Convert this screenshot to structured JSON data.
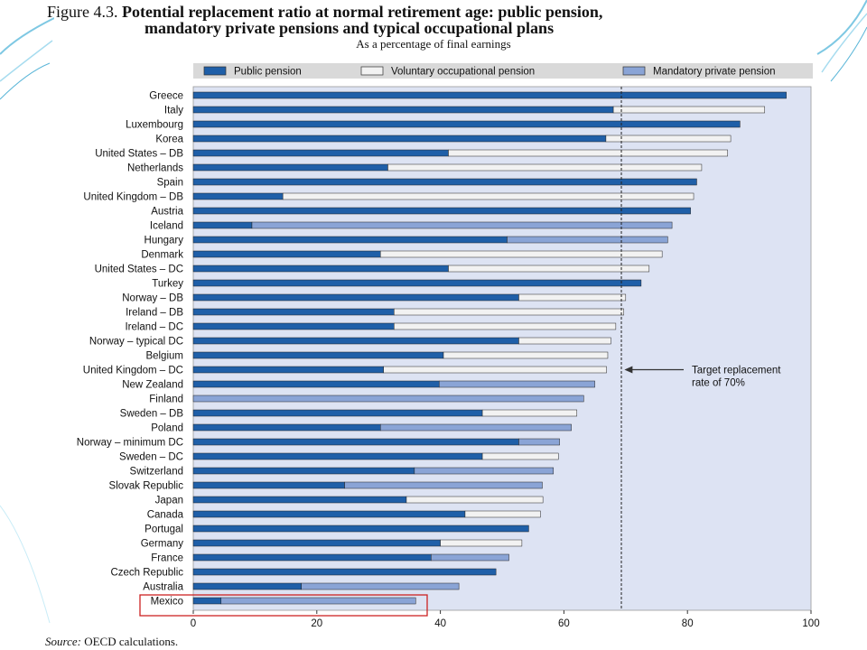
{
  "figure": {
    "label": "Figure 4.3.",
    "title_line1": "Potential replacement ratio at normal retirement age: public pension,",
    "title_line2": "mandatory private pensions and typical occupational plans",
    "subtitle": "As a percentage of final earnings",
    "source_label": "Source:",
    "source_text": "OECD calculations."
  },
  "colors": {
    "public": "#1f5fa8",
    "voluntary": "#f2f2f2",
    "mandatory": "#8aa4d6",
    "plot_bg": "#dde3f3",
    "highlight_box": "#cc2222"
  },
  "chart_data": {
    "type": "bar",
    "orientation": "horizontal",
    "stacked": true,
    "categories": [
      "Greece",
      "Italy",
      "Luxembourg",
      "Korea",
      "United States – DB",
      "Netherlands",
      "Spain",
      "United Kingdom – DB",
      "Austria",
      "Iceland",
      "Hungary",
      "Denmark",
      "United States – DC",
      "Turkey",
      "Norway – DB",
      "Ireland – DB",
      "Ireland – DC",
      "Norway – typical DC",
      "Belgium",
      "United Kingdom – DC",
      "New Zealand",
      "Finland",
      "Sweden – DB",
      "Poland",
      "Norway – minimum DC",
      "Sweden – DC",
      "Switzerland",
      "Slovak Republic",
      "Japan",
      "Canada",
      "Portugal",
      "Germany",
      "France",
      "Czech Republic",
      "Australia",
      "Mexico"
    ],
    "series": [
      {
        "name": "Public pension",
        "values": [
          96,
          68,
          88.5,
          66.8,
          41.3,
          31.5,
          81.5,
          14.5,
          80.5,
          9.5,
          50.8,
          30.3,
          41.3,
          72.5,
          52.7,
          32.5,
          32.5,
          52.7,
          40.5,
          30.8,
          39.8,
          0,
          46.8,
          30.3,
          52.7,
          46.8,
          35.8,
          24.5,
          34.5,
          44,
          54.3,
          40,
          38.5,
          49,
          17.5,
          4.5
        ],
        "color_key": "public"
      },
      {
        "name": "Voluntary occupational pension",
        "values": [
          0,
          24.5,
          0,
          20.2,
          45.2,
          50.8,
          0,
          66.5,
          0,
          0,
          0,
          45.6,
          32.5,
          0,
          17.3,
          37.2,
          35.9,
          14.9,
          26.6,
          36.1,
          0,
          0,
          15.3,
          0,
          0,
          12.3,
          0,
          0,
          22.1,
          12.2,
          0,
          13.2,
          0,
          0,
          0,
          0
        ],
        "color_key": "voluntary"
      },
      {
        "name": "Mandatory private pension",
        "values": [
          0,
          0,
          0,
          0,
          0,
          0,
          0,
          0,
          0,
          68,
          26,
          0,
          0,
          0,
          0,
          0,
          0,
          0,
          0,
          0,
          25.2,
          63.2,
          0,
          30.9,
          6.6,
          0,
          22.5,
          32,
          0,
          0,
          0,
          0,
          12.6,
          0,
          25.5,
          31.5
        ],
        "color_key": "mandatory"
      }
    ],
    "xlim": [
      0,
      100
    ],
    "xticks": [
      0,
      20,
      40,
      60,
      80,
      100
    ],
    "grid": false,
    "legend_position": "top",
    "reference_line": {
      "x": 69.3,
      "style": "dashed"
    },
    "annotation": {
      "line1": "Target replacement",
      "line2": "rate of 70%",
      "points_to_x": 69.5,
      "category": "United Kingdom – DC"
    },
    "highlight_category": "Mexico"
  }
}
